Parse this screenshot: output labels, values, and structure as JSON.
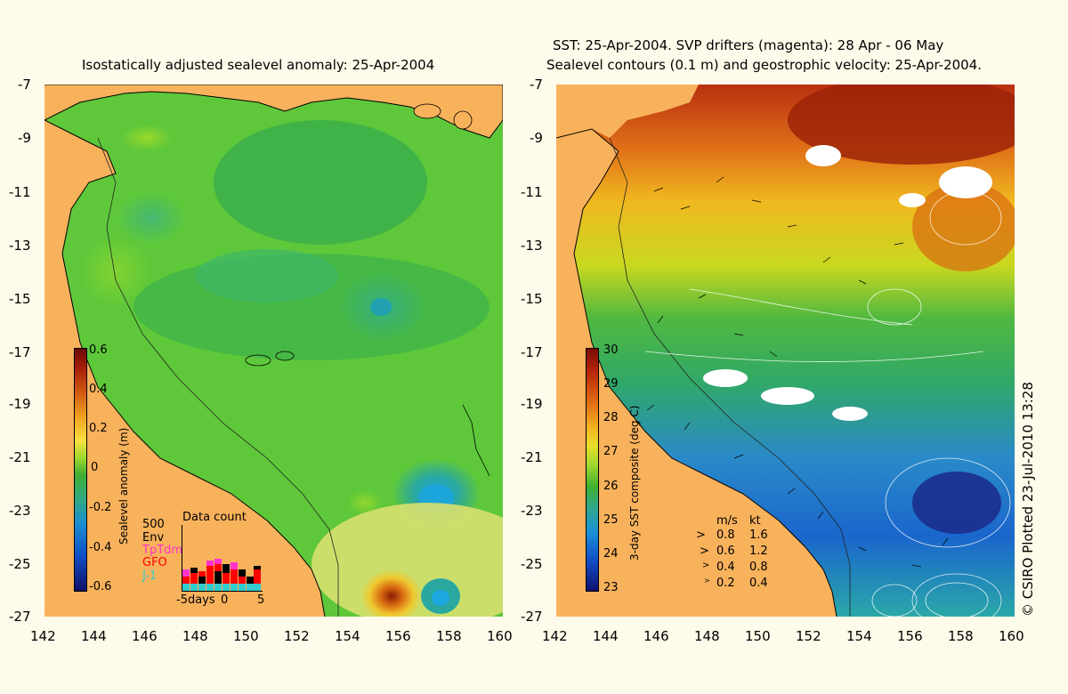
{
  "left_panel": {
    "title": "Isostatically adjusted sealevel anomaly: 25-Apr-2004",
    "colorbar_label": "Sealevel anomaly (m)",
    "colorbar_ticks": [
      "0.6",
      "0.4",
      "0.2",
      "0",
      "-0.2",
      "-0.4",
      "-0.6"
    ],
    "data_count": {
      "title": "Data count",
      "scale_value": "500",
      "missions": [
        {
          "name": "Env",
          "color": "#000000"
        },
        {
          "name": "TpTdm",
          "color": "#ff33cc"
        },
        {
          "name": "GFO",
          "color": "#ff0000"
        },
        {
          "name": "J-1",
          "color": "#33cccc"
        }
      ],
      "axis_labels": [
        "-5days",
        "0",
        "5"
      ]
    }
  },
  "right_panel": {
    "title_line1": "SST: 25-Apr-2004. SVP drifters (magenta): 28 Apr - 06 May",
    "title_line2": "Sealevel contours (0.1 m) and geostrophic velocity: 25-Apr-2004.",
    "colorbar_label": "3-day SST composite (deg C)",
    "colorbar_ticks": [
      "30",
      "29",
      "28",
      "27",
      "26",
      "25",
      "24",
      "23"
    ],
    "velocity_legend": {
      "headers": [
        "m/s",
        "kt"
      ],
      "rows": [
        {
          "ms": "0.8",
          "kt": "1.6"
        },
        {
          "ms": "0.6",
          "kt": "1.2"
        },
        {
          "ms": "0.4",
          "kt": "0.8"
        },
        {
          "ms": "0.2",
          "kt": "0.4"
        }
      ]
    }
  },
  "axes": {
    "lat_ticks": [
      "-7",
      "-9",
      "-11",
      "-13",
      "-15",
      "-17",
      "-19",
      "-21",
      "-23",
      "-25",
      "-27"
    ],
    "lon_ticks": [
      "142",
      "144",
      "146",
      "148",
      "150",
      "152",
      "154",
      "156",
      "158",
      "160"
    ]
  },
  "credit": "© CSIRO Plotted 23-Jul-2010 13:28",
  "colors": {
    "land": "#f8b25c",
    "background": "#fffbea",
    "sla_sea": "#5ec83a",
    "sst_cool": "#1a66cc",
    "sst_warm": "#b83010"
  }
}
